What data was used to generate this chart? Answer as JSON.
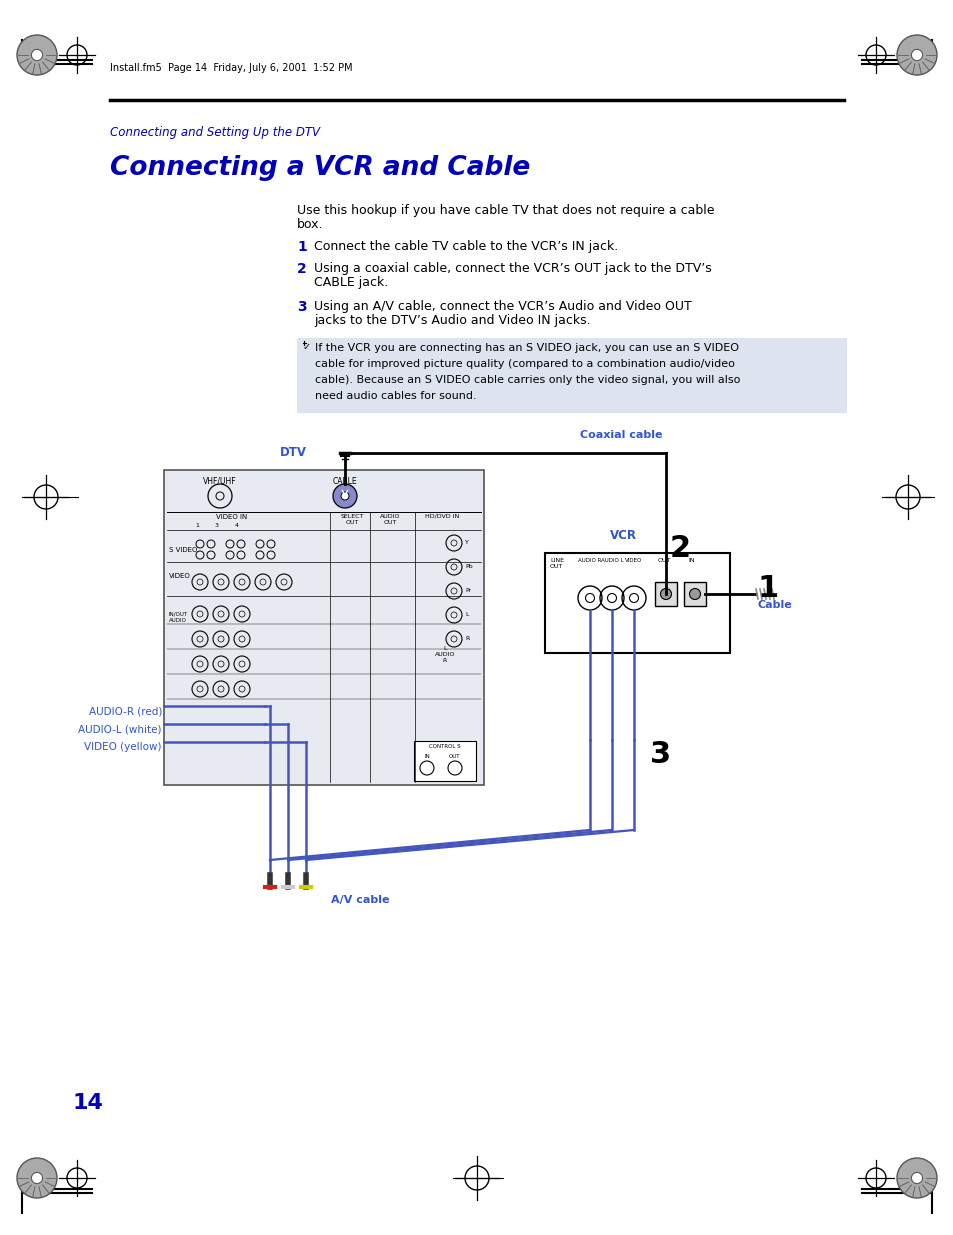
{
  "page_bg": "#ffffff",
  "page_number": "14",
  "header_text": "Install.fm5  Page 14  Friday, July 6, 2001  1:52 PM",
  "section_label": "Connecting and Setting Up the DTV",
  "title": "Connecting a VCR and Cable",
  "intro_line1": "Use this hookup if you have cable TV that does not require a cable",
  "intro_line2": "box.",
  "step1_num": "1",
  "step1_text": "Connect the cable TV cable to the VCR’s IN jack.",
  "step2_num": "2",
  "step2_line1": "Using a coaxial cable, connect the VCR’s OUT jack to the DTV’s",
  "step2_line2": "CABLE jack.",
  "step3_num": "3",
  "step3_line1": "Using an A/V cable, connect the VCR’s Audio and Video OUT",
  "step3_line2": "jacks to the DTV’s Audio and Video IN jacks.",
  "note_line1": "If the VCR you are connecting has an S VIDEO jack, you can use an S VIDEO",
  "note_line2": "cable for improved picture quality (compared to a combination audio/video",
  "note_line3": "cable). Because an S VIDEO cable carries only the video signal, you will also",
  "note_line4": "need audio cables for sound.",
  "note_bg": "#dde4f0",
  "blue": "#0000bb",
  "lblue": "#3355cc",
  "black": "#000000",
  "grey": "#888888",
  "dtv_panel_bg": "#e8eaf2",
  "vcr_panel_bg": "#ffffff"
}
